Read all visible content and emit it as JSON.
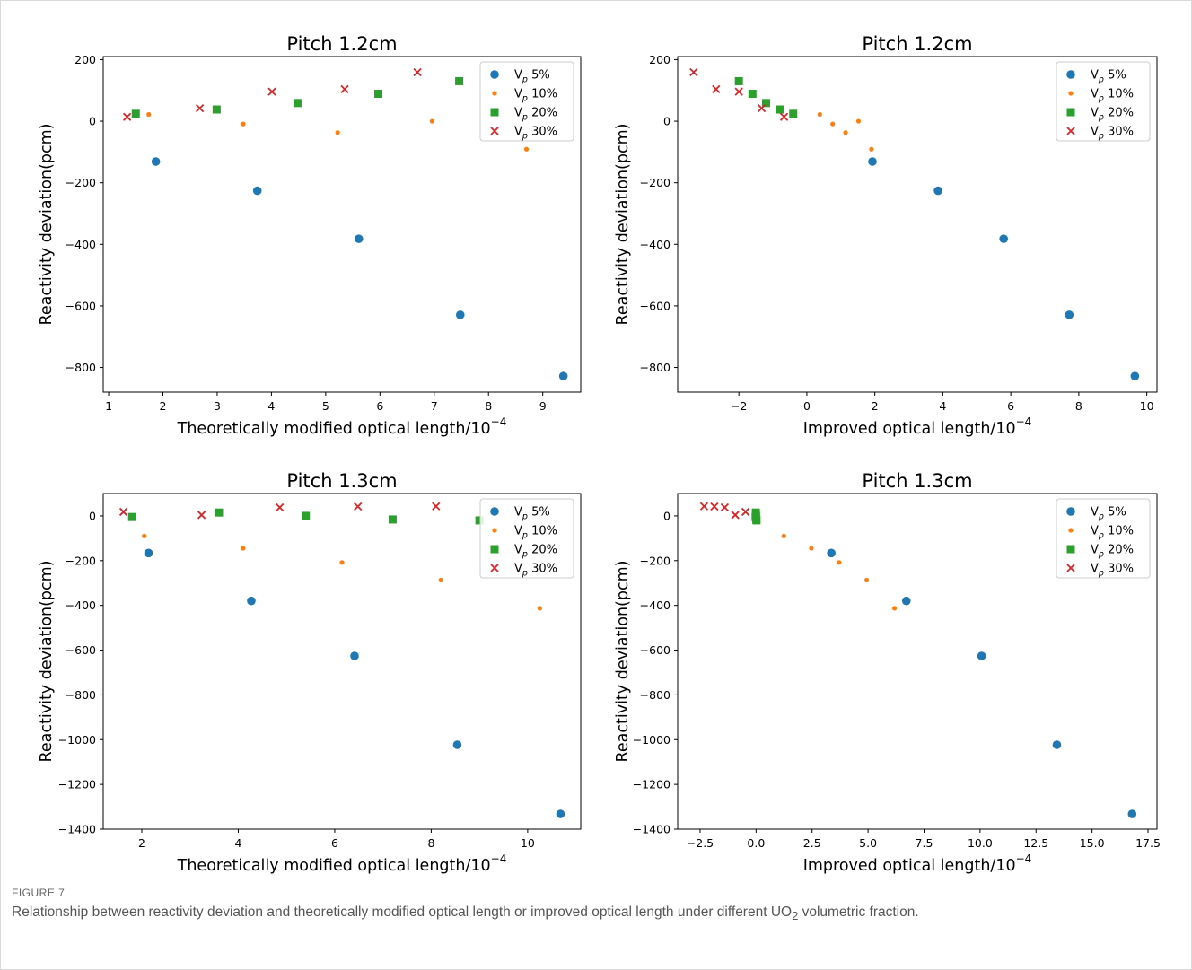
{
  "figure": {
    "label": "FIGURE 7",
    "caption_pre": "Relationship between reactivity deviation and theoretically modified optical length or improved optical length under different UO",
    "caption_sub": "2",
    "caption_post": " volumetric fraction."
  },
  "legend_labels": [
    "V_p 5%",
    "V_p 10%",
    "V_p 20%",
    "V_p 30%"
  ],
  "colors": {
    "s5": "#1f77b4",
    "s10": "#ff7f0e",
    "s20": "#2ca02c",
    "s30": "#d62728"
  },
  "chart_data": [
    {
      "type": "scatter",
      "title": "Pitch 1.2cm",
      "xlabel": "Theoretically modified optical length/10^-4",
      "ylabel": "Reactivity deviation(pcm)",
      "xlim": [
        0.9,
        9.7
      ],
      "ylim": [
        -880,
        210
      ],
      "xticks": [
        1,
        2,
        3,
        4,
        5,
        6,
        7,
        8,
        9
      ],
      "yticks": [
        -800,
        -600,
        -400,
        -200,
        0,
        200
      ],
      "legend_position": "top-right",
      "series": [
        {
          "name": "V_p 5%",
          "marker": "circle",
          "x": [
            1.87,
            3.74,
            5.61,
            7.48,
            9.38
          ],
          "y": [
            -131,
            -226,
            -382,
            -629,
            -828
          ]
        },
        {
          "name": "V_p 10%",
          "marker": "dot",
          "x": [
            1.74,
            3.48,
            5.22,
            6.96,
            8.7
          ],
          "y": [
            22,
            -9,
            -37,
            0,
            -91
          ]
        },
        {
          "name": "V_p 20%",
          "marker": "square",
          "x": [
            1.5,
            2.99,
            4.48,
            5.97,
            7.46
          ],
          "y": [
            24,
            38,
            59,
            89,
            130
          ]
        },
        {
          "name": "V_p 30%",
          "marker": "x",
          "x": [
            1.34,
            2.68,
            4.01,
            5.35,
            6.69
          ],
          "y": [
            14,
            42,
            96,
            104,
            159
          ]
        }
      ]
    },
    {
      "type": "scatter",
      "title": "Pitch 1.2cm",
      "xlabel": "Improved optical length/10^-4",
      "ylabel": "Reactivity deviation(pcm)",
      "xlim": [
        -3.8,
        10.3
      ],
      "ylim": [
        -880,
        210
      ],
      "xticks": [
        -2,
        0,
        2,
        4,
        6,
        8,
        10
      ],
      "yticks": [
        -800,
        -600,
        -400,
        -200,
        0,
        200
      ],
      "legend_position": "top-right",
      "series": [
        {
          "name": "V_p 5%",
          "marker": "circle",
          "x": [
            1.93,
            3.86,
            5.79,
            7.72,
            9.65
          ],
          "y": [
            -131,
            -226,
            -382,
            -629,
            -828
          ]
        },
        {
          "name": "V_p 10%",
          "marker": "dot",
          "x": [
            0.38,
            0.76,
            1.14,
            1.52,
            1.9
          ],
          "y": [
            22,
            -9,
            -37,
            0,
            -91
          ]
        },
        {
          "name": "V_p 20%",
          "marker": "square",
          "x": [
            -2.0,
            -1.6,
            -1.2,
            -0.8,
            -0.4
          ],
          "y": [
            130,
            89,
            59,
            38,
            24
          ]
        },
        {
          "name": "V_p 30%",
          "marker": "x",
          "x": [
            -3.33,
            -2.67,
            -2.0,
            -1.33,
            -0.67
          ],
          "y": [
            159,
            104,
            96,
            42,
            14
          ]
        }
      ]
    },
    {
      "type": "scatter",
      "title": "Pitch 1.3cm",
      "xlabel": "Theoretically modified optical length/10^-4",
      "ylabel": "Reactivity deviation(pcm)",
      "xlim": [
        1.2,
        11.1
      ],
      "ylim": [
        -1400,
        100
      ],
      "xticks": [
        2,
        4,
        6,
        8,
        10
      ],
      "yticks": [
        -1400,
        -1200,
        -1000,
        -800,
        -600,
        -400,
        -200,
        0
      ],
      "legend_position": "top-right",
      "series": [
        {
          "name": "V_p 5%",
          "marker": "circle",
          "x": [
            2.14,
            4.27,
            6.41,
            8.54,
            10.68
          ],
          "y": [
            -166,
            -380,
            -626,
            -1023,
            -1332
          ]
        },
        {
          "name": "V_p 10%",
          "marker": "dot",
          "x": [
            2.05,
            4.1,
            6.15,
            8.2,
            10.25
          ],
          "y": [
            -90,
            -145,
            -208,
            -287,
            -413
          ]
        },
        {
          "name": "V_p 20%",
          "marker": "square",
          "x": [
            1.8,
            3.6,
            5.4,
            7.2,
            9.0
          ],
          "y": [
            -5,
            15,
            0,
            -16,
            -20
          ]
        },
        {
          "name": "V_p 30%",
          "marker": "x",
          "x": [
            1.62,
            3.24,
            4.86,
            6.48,
            8.1
          ],
          "y": [
            18,
            4,
            38,
            42,
            43
          ]
        }
      ]
    },
    {
      "type": "scatter",
      "title": "Pitch 1.3cm",
      "xlabel": "Improved optical length/10^-4",
      "ylabel": "Reactivity deviation(pcm)",
      "xlim": [
        -3.5,
        17.9
      ],
      "ylim": [
        -1400,
        100
      ],
      "xticks": [
        -2.5,
        0.0,
        2.5,
        5.0,
        7.5,
        10.0,
        12.5,
        15.0,
        17.5
      ],
      "yticks": [
        -1400,
        -1200,
        -1000,
        -800,
        -600,
        -400,
        -200,
        0
      ],
      "legend_position": "top-right",
      "series": [
        {
          "name": "V_p 5%",
          "marker": "circle",
          "x": [
            3.36,
            6.71,
            10.07,
            13.43,
            16.79
          ],
          "y": [
            -166,
            -380,
            -626,
            -1023,
            -1332
          ]
        },
        {
          "name": "V_p 10%",
          "marker": "dot",
          "x": [
            1.24,
            2.47,
            3.71,
            4.94,
            6.18
          ],
          "y": [
            -90,
            -145,
            -208,
            -287,
            -413
          ]
        },
        {
          "name": "V_p 20%",
          "marker": "square",
          "x": [
            -0.02,
            -0.01,
            0.0,
            0.01,
            0.02
          ],
          "y": [
            -5,
            15,
            0,
            -16,
            -20
          ]
        },
        {
          "name": "V_p 30%",
          "marker": "x",
          "x": [
            -2.32,
            -1.86,
            -1.4,
            -0.93,
            -0.47
          ],
          "y": [
            43,
            42,
            38,
            4,
            18
          ]
        }
      ]
    }
  ]
}
